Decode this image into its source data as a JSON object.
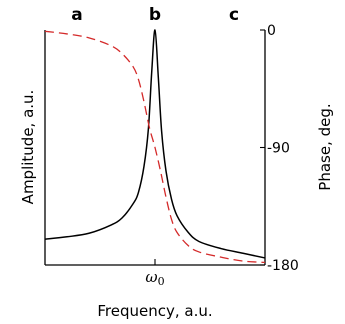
{
  "chart_data": {
    "type": "line",
    "xlabel": "Frequency, a.u.",
    "ylabel_left": "Amplitude, a.u.",
    "ylabel_right": "Phase, deg.",
    "x_ticks": [
      {
        "value": 1.0,
        "label": "ω",
        "sub": "0"
      }
    ],
    "right_ticks": [
      {
        "value": 0,
        "label": "0"
      },
      {
        "value": -90,
        "label": "-90"
      },
      {
        "value": -180,
        "label": "-180"
      }
    ],
    "right_ylim": [
      -180,
      0
    ],
    "xlim": [
      0,
      2
    ],
    "left_ylim": [
      0,
      1
    ],
    "region_labels": [
      "a",
      "b",
      "c"
    ],
    "series": [
      {
        "axis": "left",
        "style": "solid",
        "color": "#000000",
        "x": [
          0.0,
          0.2,
          0.4,
          0.6,
          0.7,
          0.8,
          0.85,
          0.9,
          0.94,
          0.97,
          1.0,
          1.03,
          1.06,
          1.1,
          1.15,
          1.2,
          1.3,
          1.4,
          1.6,
          1.8,
          2.0
        ],
        "y": [
          0.11,
          0.12,
          0.135,
          0.17,
          0.2,
          0.26,
          0.31,
          0.42,
          0.58,
          0.82,
          1.0,
          0.8,
          0.57,
          0.4,
          0.28,
          0.21,
          0.14,
          0.1,
          0.07,
          0.05,
          0.03
        ]
      },
      {
        "axis": "right",
        "style": "dashed",
        "color": "#d42a2a",
        "x": [
          0.0,
          0.2,
          0.4,
          0.6,
          0.7,
          0.8,
          0.85,
          0.9,
          0.95,
          1.0,
          1.05,
          1.1,
          1.15,
          1.2,
          1.3,
          1.4,
          1.6,
          1.8,
          2.0
        ],
        "y": [
          -1,
          -3,
          -6,
          -12,
          -18,
          -28,
          -38,
          -55,
          -75,
          -90,
          -108,
          -128,
          -145,
          -155,
          -165,
          -170,
          -174,
          -177,
          -178
        ]
      }
    ]
  }
}
